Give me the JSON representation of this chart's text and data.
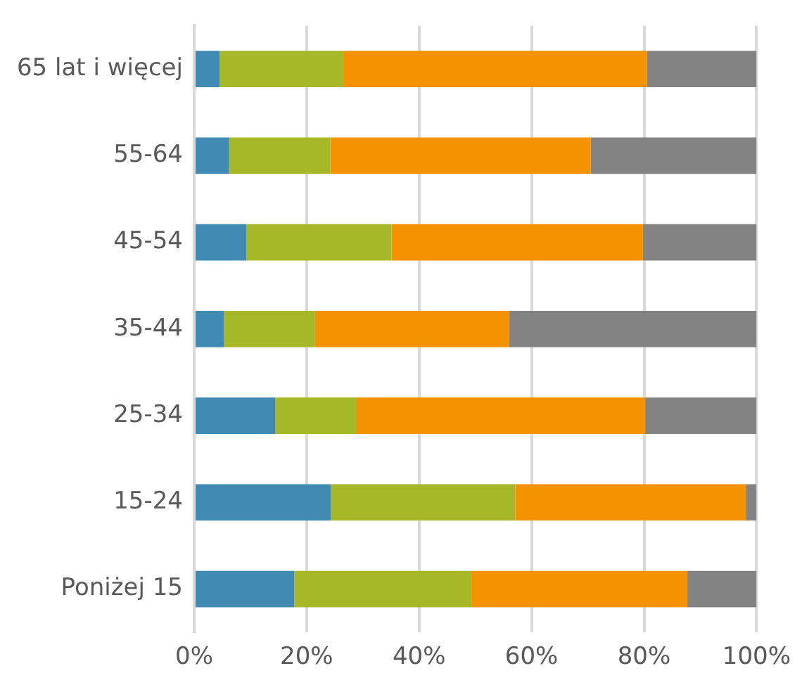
{
  "chart_data": {
    "type": "bar",
    "orientation": "horizontal",
    "stacked": true,
    "categories": [
      "65 lat i więcej",
      "55-64",
      "45-54",
      "35-44",
      "25-34",
      "15-24",
      "Poniżej 15"
    ],
    "series": [
      {
        "color": "#418ab3",
        "values": [
          4.5,
          6.2,
          9.3,
          5.3,
          14.4,
          24.3,
          17.8
        ]
      },
      {
        "color": "#a6b727",
        "values": [
          22,
          18,
          25.8,
          16.2,
          14.5,
          32.8,
          31.5
        ]
      },
      {
        "color": "#f59201",
        "values": [
          54,
          46.3,
          44.7,
          34.5,
          51.3,
          41,
          38.4
        ]
      },
      {
        "color": "#838383",
        "values": [
          19.5,
          29.5,
          20.2,
          44,
          19.8,
          1.9,
          12.3
        ]
      }
    ],
    "xlim": [
      0,
      100
    ],
    "xticks": [
      {
        "value": 0,
        "label": "0%"
      },
      {
        "value": 20,
        "label": "20%"
      },
      {
        "value": 40,
        "label": "40%"
      },
      {
        "value": 60,
        "label": "60%"
      },
      {
        "value": 80,
        "label": "80%"
      },
      {
        "value": 100,
        "label": "100%"
      }
    ],
    "grid": "x",
    "legend": false
  }
}
